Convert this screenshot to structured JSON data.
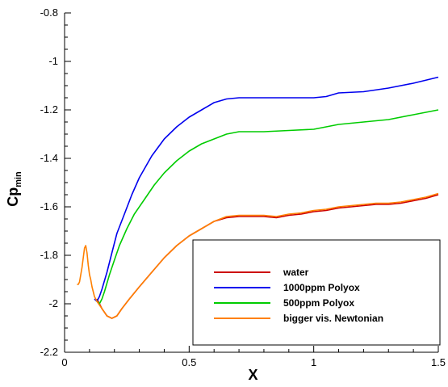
{
  "chart_data": {
    "type": "line",
    "title": "",
    "xlabel": "X",
    "ylabel_main": "Cp",
    "ylabel_sub": "min",
    "xlim": [
      0,
      1.5
    ],
    "ylim": [
      -2.2,
      -0.8
    ],
    "xticks": [
      0,
      0.5,
      1,
      1.5
    ],
    "xtick_labels": [
      "0",
      "0.5",
      "1",
      "1.5"
    ],
    "yticks": [
      -0.8,
      -1,
      -1.2,
      -1.4,
      -1.6,
      -1.8,
      -2,
      -2.2
    ],
    "ytick_labels": [
      "-0.8",
      "-1",
      "-1.2",
      "-1.4",
      "-1.6",
      "-1.8",
      "-2",
      "-2.2"
    ],
    "grid": false,
    "legend_position": "bottom-right",
    "series": [
      {
        "name": "water",
        "color": "#cc0000",
        "x": [
          0.13,
          0.15,
          0.17,
          0.19,
          0.21,
          0.23,
          0.26,
          0.3,
          0.35,
          0.4,
          0.45,
          0.5,
          0.55,
          0.6,
          0.65,
          0.7,
          0.75,
          0.8,
          0.85,
          0.9,
          0.95,
          1.0,
          1.05,
          1.1,
          1.15,
          1.2,
          1.25,
          1.3,
          1.35,
          1.4,
          1.45,
          1.5
        ],
        "y": [
          -1.98,
          -2.02,
          -2.05,
          -2.06,
          -2.05,
          -2.02,
          -1.98,
          -1.93,
          -1.87,
          -1.81,
          -1.76,
          -1.72,
          -1.69,
          -1.66,
          -1.645,
          -1.64,
          -1.64,
          -1.64,
          -1.645,
          -1.635,
          -1.63,
          -1.62,
          -1.615,
          -1.605,
          -1.6,
          -1.595,
          -1.59,
          -1.59,
          -1.585,
          -1.575,
          -1.565,
          -1.55
        ]
      },
      {
        "name": "1000ppm Polyox",
        "color": "#0000ee",
        "x": [
          0.12,
          0.13,
          0.14,
          0.15,
          0.17,
          0.19,
          0.21,
          0.24,
          0.27,
          0.3,
          0.35,
          0.4,
          0.45,
          0.5,
          0.55,
          0.6,
          0.65,
          0.7,
          0.75,
          0.8,
          0.9,
          1.0,
          1.05,
          1.1,
          1.2,
          1.3,
          1.4,
          1.5
        ],
        "y": [
          -1.98,
          -1.99,
          -1.97,
          -1.94,
          -1.87,
          -1.79,
          -1.71,
          -1.63,
          -1.55,
          -1.48,
          -1.39,
          -1.32,
          -1.27,
          -1.23,
          -1.2,
          -1.17,
          -1.155,
          -1.15,
          -1.15,
          -1.15,
          -1.15,
          -1.15,
          -1.145,
          -1.13,
          -1.125,
          -1.11,
          -1.09,
          -1.065
        ]
      },
      {
        "name": "500ppm Polyox",
        "color": "#00cc00",
        "x": [
          0.13,
          0.14,
          0.15,
          0.16,
          0.18,
          0.2,
          0.22,
          0.25,
          0.28,
          0.32,
          0.36,
          0.4,
          0.45,
          0.5,
          0.55,
          0.6,
          0.65,
          0.7,
          0.8,
          0.9,
          1.0,
          1.05,
          1.1,
          1.2,
          1.3,
          1.4,
          1.5
        ],
        "y": [
          -1.99,
          -2.0,
          -1.98,
          -1.95,
          -1.88,
          -1.82,
          -1.76,
          -1.69,
          -1.63,
          -1.57,
          -1.51,
          -1.46,
          -1.41,
          -1.37,
          -1.34,
          -1.32,
          -1.3,
          -1.29,
          -1.29,
          -1.285,
          -1.28,
          -1.27,
          -1.26,
          -1.25,
          -1.24,
          -1.22,
          -1.2
        ]
      },
      {
        "name": "bigger vis. Newtonian",
        "color": "#ff8000",
        "x": [
          0.05,
          0.055,
          0.06,
          0.07,
          0.08,
          0.085,
          0.09,
          0.095,
          0.1,
          0.105,
          0.11,
          0.115,
          0.12,
          0.13,
          0.15,
          0.17,
          0.19,
          0.21,
          0.23,
          0.26,
          0.3,
          0.35,
          0.4,
          0.45,
          0.5,
          0.55,
          0.6,
          0.65,
          0.7,
          0.75,
          0.8,
          0.85,
          0.9,
          0.95,
          1.0,
          1.05,
          1.1,
          1.15,
          1.2,
          1.25,
          1.3,
          1.35,
          1.4,
          1.45,
          1.5
        ],
        "y": [
          -1.92,
          -1.92,
          -1.91,
          -1.85,
          -1.77,
          -1.76,
          -1.79,
          -1.84,
          -1.88,
          -1.9,
          -1.93,
          -1.95,
          -1.97,
          -1.99,
          -2.02,
          -2.05,
          -2.06,
          -2.05,
          -2.02,
          -1.98,
          -1.93,
          -1.87,
          -1.81,
          -1.76,
          -1.72,
          -1.69,
          -1.66,
          -1.64,
          -1.635,
          -1.635,
          -1.635,
          -1.64,
          -1.63,
          -1.625,
          -1.615,
          -1.61,
          -1.6,
          -1.595,
          -1.59,
          -1.585,
          -1.585,
          -1.58,
          -1.57,
          -1.56,
          -1.545
        ]
      }
    ]
  }
}
